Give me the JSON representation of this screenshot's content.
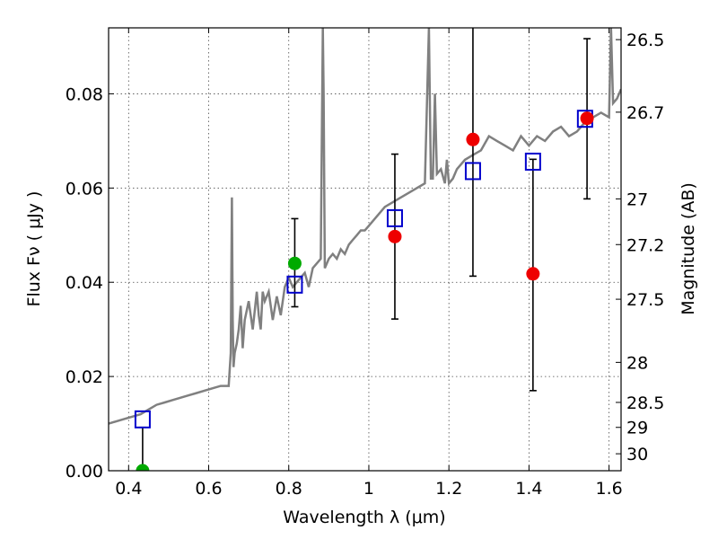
{
  "chart_data": {
    "type": "scatter",
    "title": "",
    "xlabel": "Wavelength  λ (μm)",
    "ylabel": "Flux  Fν  ( μJy )",
    "ylabel_right": "Magnitude (AB)",
    "xlim": [
      0.35,
      1.63
    ],
    "ylim": [
      0.0,
      0.094
    ],
    "grid": true,
    "x_ticks": [
      0.4,
      0.6,
      0.8,
      1.0,
      1.2,
      1.4,
      1.6
    ],
    "x_tick_labels": [
      "0.4",
      "0.6",
      "0.8",
      "1",
      "1.2",
      "1.4",
      "1.6"
    ],
    "y_ticks": [
      0.0,
      0.02,
      0.04,
      0.06,
      0.08
    ],
    "y_tick_labels": [
      "0.00",
      "0.02",
      "0.04",
      "0.06",
      "0.08"
    ],
    "right_ticks": [
      {
        "label": "26.5",
        "flux": 0.0915
      },
      {
        "label": "26.7",
        "flux": 0.0761
      },
      {
        "label": "27",
        "flux": 0.0577
      },
      {
        "label": "27.2",
        "flux": 0.048
      },
      {
        "label": "27.5",
        "flux": 0.0364
      },
      {
        "label": "28",
        "flux": 0.023
      },
      {
        "label": "28.5",
        "flux": 0.0145
      },
      {
        "label": "29",
        "flux": 0.0092
      },
      {
        "label": "30",
        "flux": 0.0036
      }
    ],
    "series": [
      {
        "kind": "line",
        "color": "#808080",
        "x": [
          0.35,
          0.37,
          0.39,
          0.41,
          0.43,
          0.45,
          0.47,
          0.49,
          0.51,
          0.53,
          0.55,
          0.57,
          0.59,
          0.61,
          0.63,
          0.65,
          0.655,
          0.658,
          0.66,
          0.662,
          0.665,
          0.67,
          0.675,
          0.68,
          0.685,
          0.69,
          0.7,
          0.71,
          0.72,
          0.725,
          0.73,
          0.735,
          0.74,
          0.75,
          0.76,
          0.77,
          0.78,
          0.79,
          0.8,
          0.81,
          0.82,
          0.83,
          0.84,
          0.85,
          0.86,
          0.87,
          0.88,
          0.885,
          0.887,
          0.89,
          0.9,
          0.91,
          0.92,
          0.93,
          0.94,
          0.95,
          0.96,
          0.97,
          0.98,
          0.99,
          1.0,
          1.02,
          1.04,
          1.06,
          1.08,
          1.1,
          1.12,
          1.14,
          1.15,
          1.155,
          1.16,
          1.165,
          1.17,
          1.18,
          1.19,
          1.195,
          1.2,
          1.21,
          1.22,
          1.24,
          1.26,
          1.28,
          1.3,
          1.32,
          1.34,
          1.36,
          1.38,
          1.4,
          1.42,
          1.44,
          1.46,
          1.48,
          1.5,
          1.52,
          1.54,
          1.56,
          1.58,
          1.6,
          1.605,
          1.61,
          1.62,
          1.63
        ],
        "y": [
          0.01,
          0.0105,
          0.011,
          0.0115,
          0.012,
          0.013,
          0.014,
          0.0145,
          0.015,
          0.0155,
          0.016,
          0.0165,
          0.017,
          0.0175,
          0.018,
          0.018,
          0.025,
          0.058,
          0.032,
          0.022,
          0.025,
          0.027,
          0.03,
          0.035,
          0.026,
          0.032,
          0.036,
          0.03,
          0.038,
          0.033,
          0.03,
          0.038,
          0.036,
          0.038,
          0.032,
          0.037,
          0.033,
          0.039,
          0.041,
          0.039,
          0.04,
          0.041,
          0.042,
          0.039,
          0.043,
          0.044,
          0.045,
          0.094,
          0.08,
          0.043,
          0.045,
          0.046,
          0.045,
          0.047,
          0.046,
          0.048,
          0.049,
          0.05,
          0.051,
          0.051,
          0.052,
          0.054,
          0.056,
          0.057,
          0.058,
          0.059,
          0.06,
          0.061,
          0.094,
          0.062,
          0.062,
          0.08,
          0.063,
          0.064,
          0.061,
          0.066,
          0.061,
          0.062,
          0.064,
          0.066,
          0.067,
          0.068,
          0.071,
          0.07,
          0.069,
          0.068,
          0.071,
          0.069,
          0.071,
          0.07,
          0.072,
          0.073,
          0.071,
          0.072,
          0.074,
          0.075,
          0.076,
          0.075,
          0.094,
          0.078,
          0.079,
          0.081
        ]
      },
      {
        "kind": "open-square",
        "color": "#0000cc",
        "x": [
          0.435,
          0.815,
          1.065,
          1.26,
          1.41,
          1.54
        ],
        "y": [
          0.0109,
          0.0395,
          0.0536,
          0.0636,
          0.0656,
          0.0747
        ]
      },
      {
        "kind": "point",
        "color": "#ee0000",
        "x": [
          1.065,
          1.26,
          1.41,
          1.545
        ],
        "y": [
          0.0497,
          0.0703,
          0.0418,
          0.0748
        ],
        "err_low": [
          0.0322,
          0.0413,
          0.017,
          0.0577
        ],
        "err_high": [
          0.0672,
          0.094,
          0.0661,
          0.0917
        ]
      },
      {
        "kind": "point",
        "color": "#00aa00",
        "x": [
          0.435,
          0.815
        ],
        "y": [
          0.0,
          0.044
        ],
        "err_low": [
          0.0,
          0.0348
        ],
        "err_high": [
          0.0092,
          0.0535
        ]
      }
    ]
  }
}
